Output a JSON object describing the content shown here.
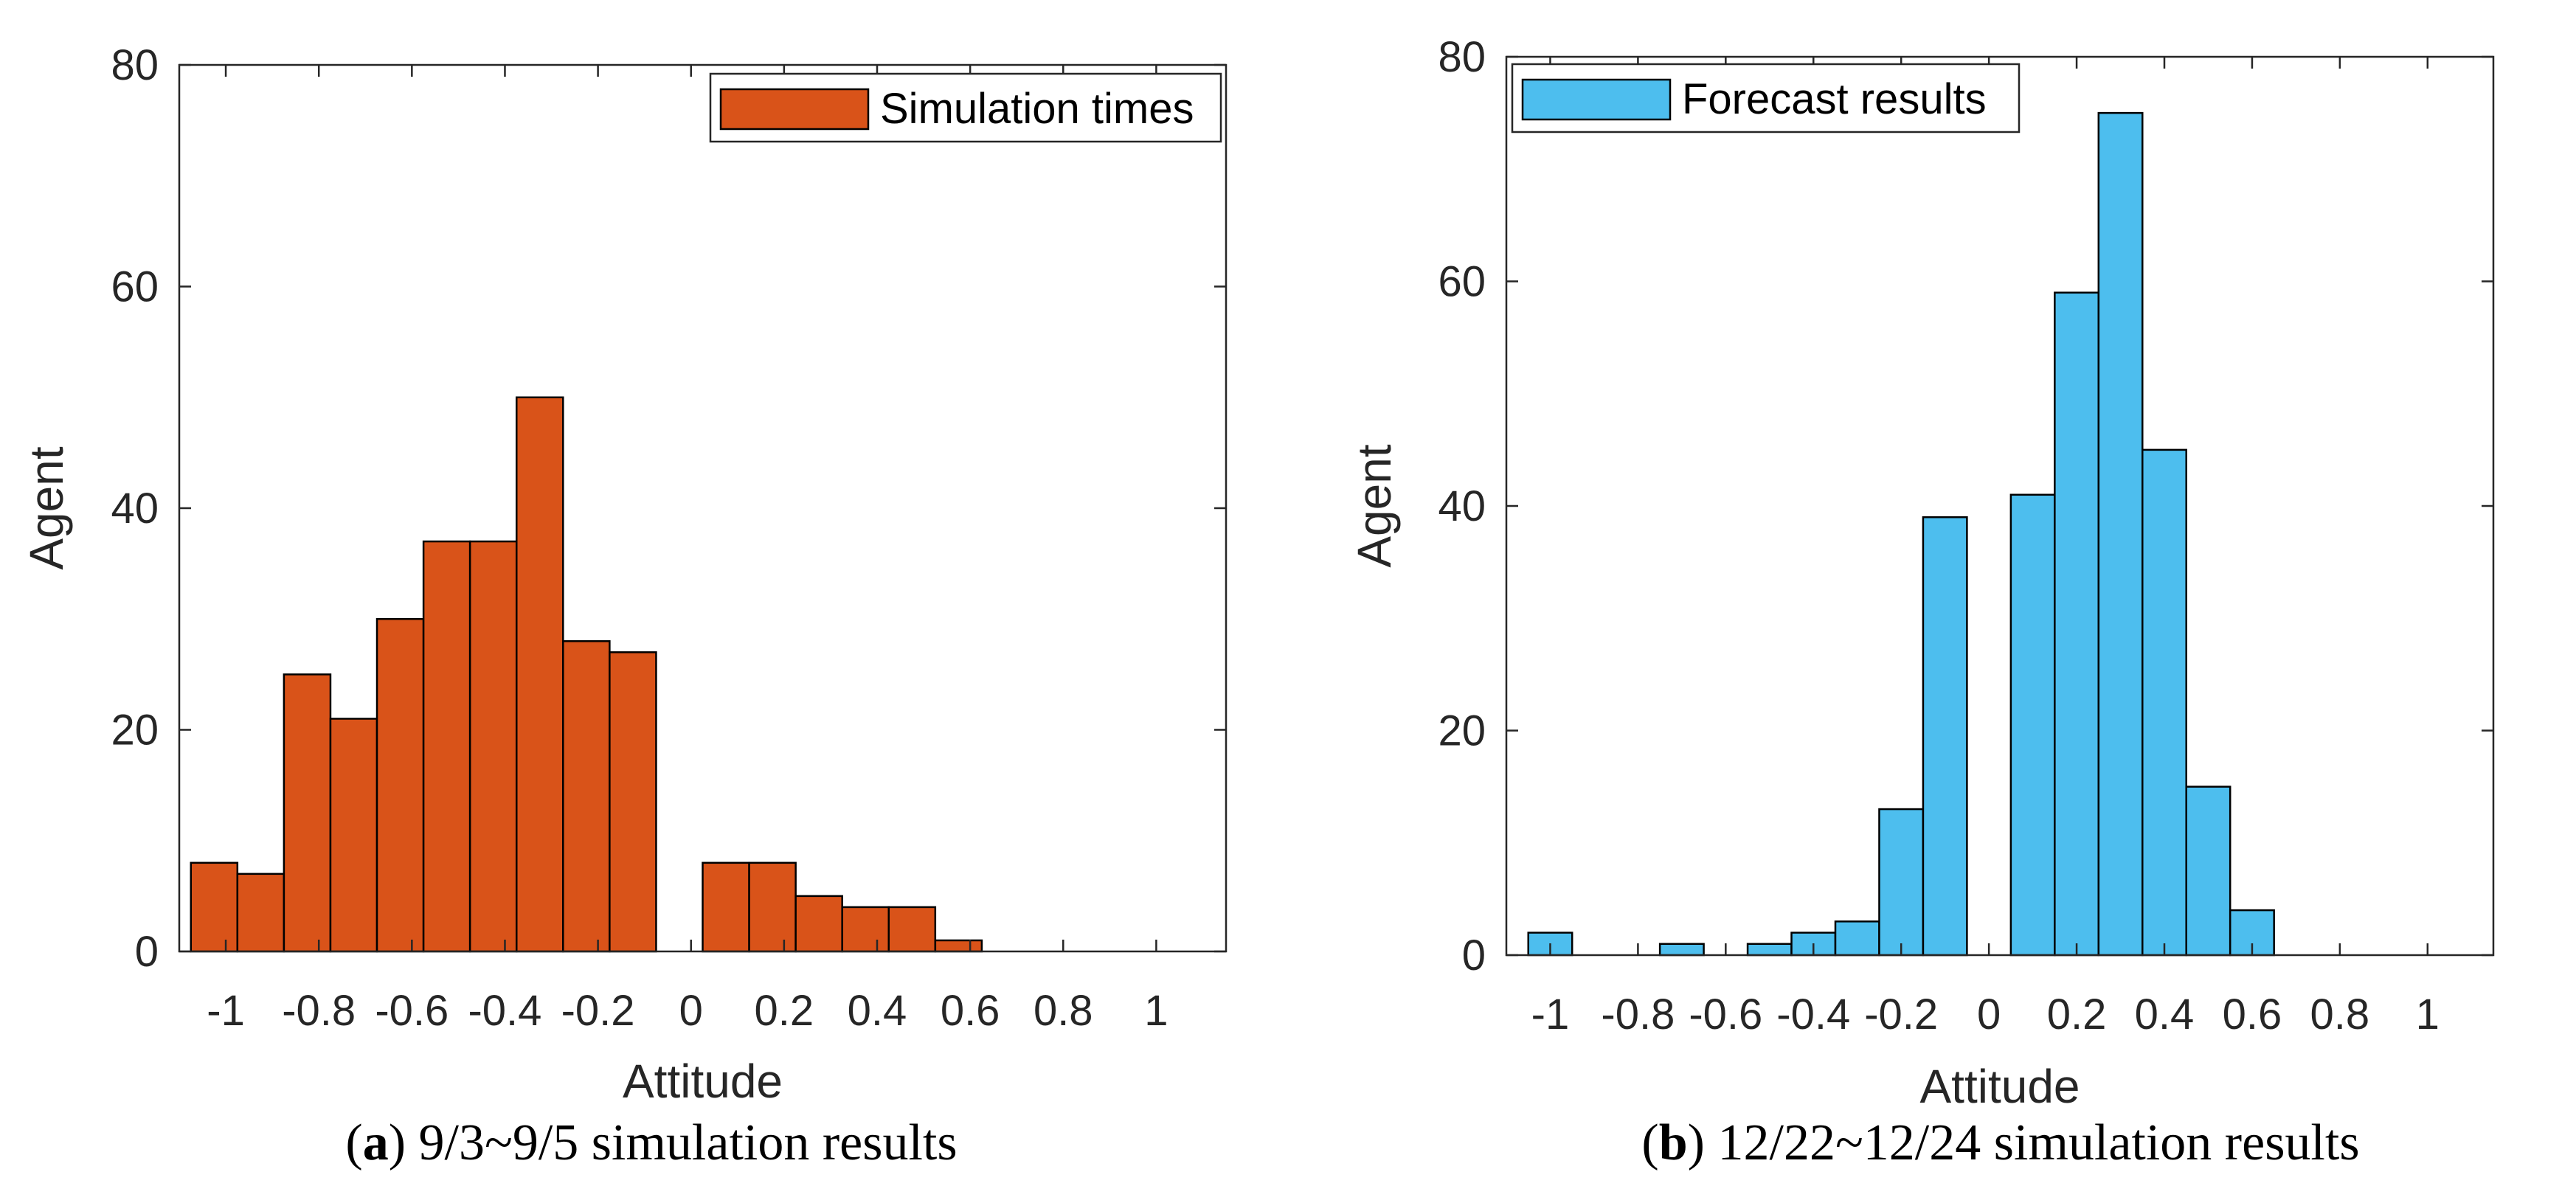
{
  "chart_data": [
    {
      "type": "bar",
      "id": "a",
      "xlabel": "Attitude",
      "ylabel": "Agent",
      "xlim": [
        -1.1,
        1.15
      ],
      "ylim": [
        0,
        80
      ],
      "xticks": [
        -1,
        -0.8,
        -0.6,
        -0.4,
        -0.2,
        0,
        0.2,
        0.4,
        0.6,
        0.8,
        1
      ],
      "xtick_labels": [
        "-1",
        "-0.8",
        "-0.6",
        "-0.4",
        "-0.2",
        "0",
        "0.2",
        "0.4",
        "0.6",
        "0.8",
        "1"
      ],
      "yticks": [
        0,
        20,
        40,
        60,
        80
      ],
      "ytick_labels": [
        "0",
        "20",
        "40",
        "60",
        "80"
      ],
      "bin_width": 0.1,
      "color": "#D95319",
      "legend": "Simulation times",
      "legend_position": "top-right",
      "bins": [
        {
          "x": -1.025,
          "value": 8
        },
        {
          "x": -0.925,
          "value": 7
        },
        {
          "x": -0.825,
          "value": 25
        },
        {
          "x": -0.725,
          "value": 21
        },
        {
          "x": -0.625,
          "value": 30
        },
        {
          "x": -0.525,
          "value": 37
        },
        {
          "x": -0.425,
          "value": 37
        },
        {
          "x": -0.325,
          "value": 50
        },
        {
          "x": -0.225,
          "value": 28
        },
        {
          "x": -0.125,
          "value": 27
        },
        {
          "x": 0.075,
          "value": 8
        },
        {
          "x": 0.175,
          "value": 8
        },
        {
          "x": 0.275,
          "value": 5
        },
        {
          "x": 0.375,
          "value": 4
        },
        {
          "x": 0.475,
          "value": 4
        },
        {
          "x": 0.575,
          "value": 1
        }
      ]
    },
    {
      "type": "bar",
      "id": "b",
      "xlabel": "Attitude",
      "ylabel": "Agent",
      "xlim": [
        -1.1,
        1.15
      ],
      "ylim": [
        0,
        80
      ],
      "xticks": [
        -1,
        -0.8,
        -0.6,
        -0.4,
        -0.2,
        0,
        0.2,
        0.4,
        0.6,
        0.8,
        1
      ],
      "xtick_labels": [
        "-1",
        "-0.8",
        "-0.6",
        "-0.4",
        "-0.2",
        "0",
        "0.2",
        "0.4",
        "0.6",
        "0.8",
        "1"
      ],
      "yticks": [
        0,
        20,
        40,
        60,
        80
      ],
      "ytick_labels": [
        "0",
        "20",
        "40",
        "60",
        "80"
      ],
      "bin_width": 0.1,
      "color": "#4DBEEE",
      "legend": "Forecast results",
      "legend_position": "top-left",
      "bins": [
        {
          "x": -1.0,
          "value": 2
        },
        {
          "x": -0.7,
          "value": 1
        },
        {
          "x": -0.5,
          "value": 1
        },
        {
          "x": -0.4,
          "value": 2
        },
        {
          "x": -0.3,
          "value": 3
        },
        {
          "x": -0.2,
          "value": 13
        },
        {
          "x": -0.1,
          "value": 39
        },
        {
          "x": 0.1,
          "value": 41
        },
        {
          "x": 0.2,
          "value": 59
        },
        {
          "x": 0.3,
          "value": 75
        },
        {
          "x": 0.4,
          "value": 45
        },
        {
          "x": 0.5,
          "value": 15
        },
        {
          "x": 0.6,
          "value": 4
        }
      ]
    }
  ],
  "captions": [
    {
      "letter": "a",
      "text": "9/3~9/5 simulation results"
    },
    {
      "letter": "b",
      "text": "12/22~12/24 simulation results"
    }
  ]
}
